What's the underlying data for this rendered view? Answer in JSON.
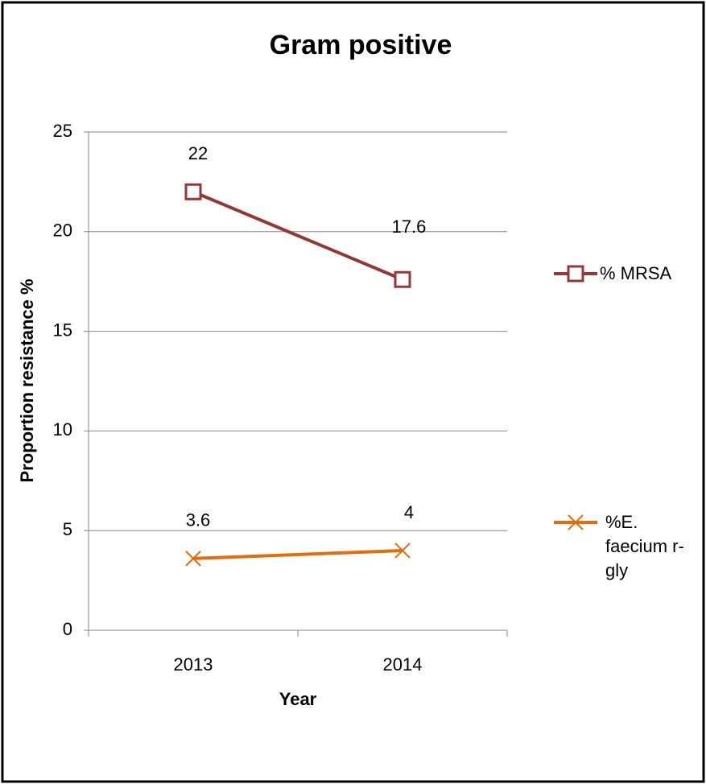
{
  "chart_data": {
    "type": "line",
    "title": "Gram positive",
    "x_label": "Year",
    "y_label": "Proportion resistance %",
    "categories": [
      "2013",
      "2014"
    ],
    "series": [
      {
        "name": "% MRSA",
        "color": "#953735",
        "marker": "square",
        "values": [
          22,
          17.6
        ]
      },
      {
        "name": "%E. faecium r-gly",
        "color": "#e46c0a",
        "marker": "x",
        "values": [
          3.6,
          4
        ]
      }
    ],
    "ylim": [
      0,
      25
    ],
    "yticks": [
      0,
      5,
      10,
      15,
      20,
      25
    ],
    "grid": true,
    "legend": "right"
  }
}
